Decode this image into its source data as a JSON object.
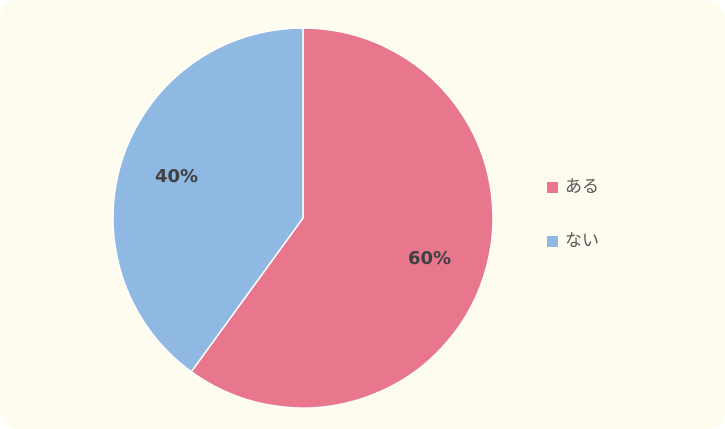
{
  "chart_data": {
    "type": "pie",
    "categories": [
      "ある",
      "ない"
    ],
    "values": [
      60,
      40
    ],
    "value_labels": [
      "60%",
      "40%"
    ],
    "colors": [
      "#e8768c",
      "#8fb8e3"
    ],
    "legend": "right"
  }
}
